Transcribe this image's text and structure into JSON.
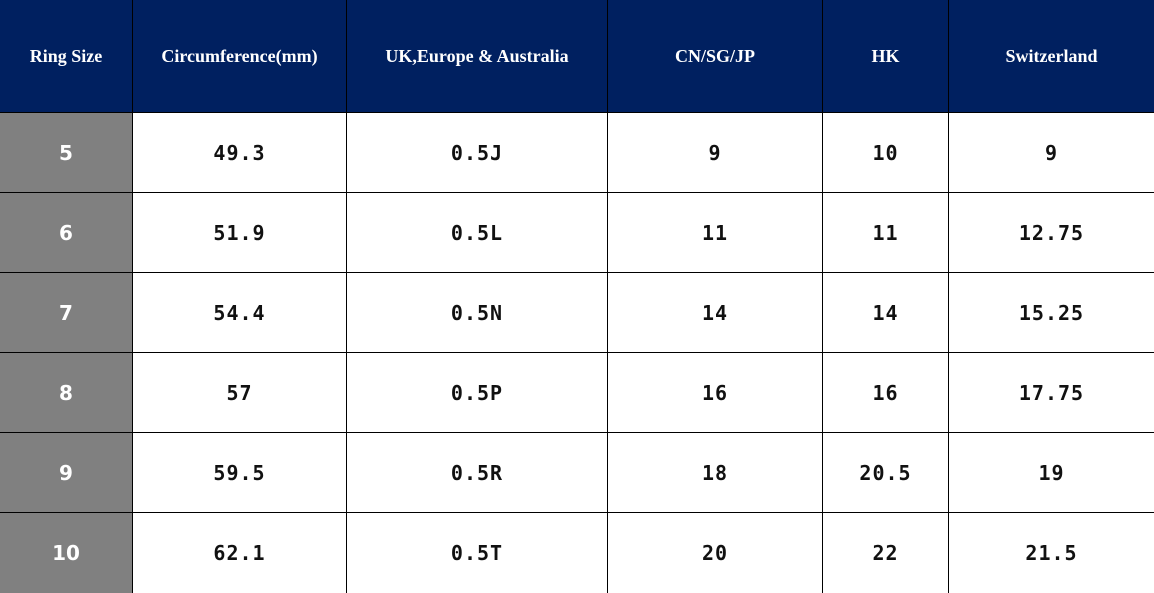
{
  "table": {
    "header": [
      "Ring Size",
      "Circumference(mm)",
      "UK,Europe & Australia",
      "CN/SG/JP",
      "HK",
      "Switzerland"
    ],
    "rows": [
      [
        "5",
        "49.3",
        "0.5J",
        "9",
        "10",
        "9"
      ],
      [
        "6",
        "51.9",
        "0.5L",
        "11",
        "11",
        "12.75"
      ],
      [
        "7",
        "54.4",
        "0.5N",
        "14",
        "14",
        "15.25"
      ],
      [
        "8",
        "57",
        "0.5P",
        "16",
        "16",
        "17.75"
      ],
      [
        "9",
        "59.5",
        "0.5R",
        "18",
        "20.5",
        "19"
      ],
      [
        "10",
        "62.1",
        "0.5T",
        "20",
        "22",
        "21.5"
      ]
    ]
  }
}
